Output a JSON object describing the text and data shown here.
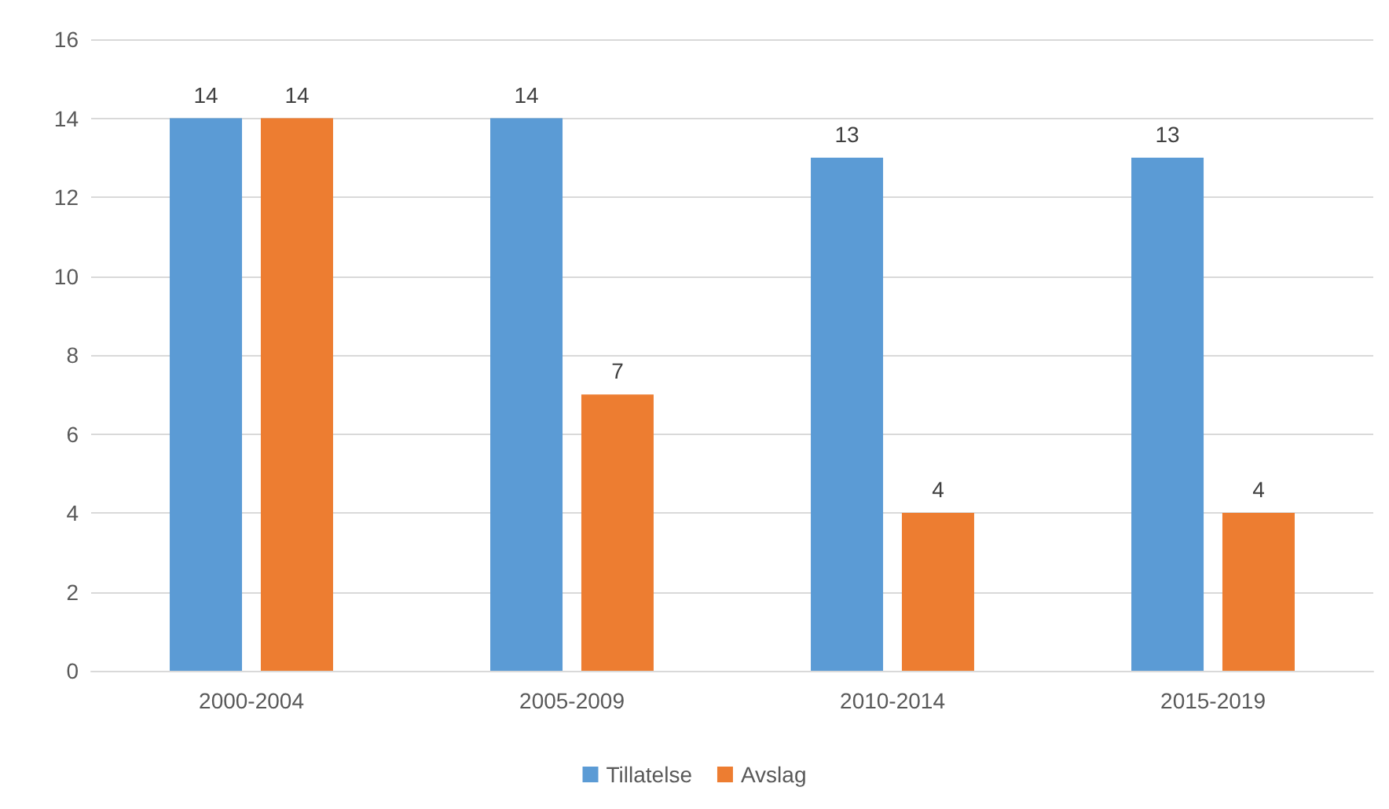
{
  "chart_data": {
    "type": "bar",
    "categories": [
      "2000-2004",
      "2005-2009",
      "2010-2014",
      "2015-2019"
    ],
    "series": [
      {
        "name": "Tillatelse",
        "color": "#5b9bd5",
        "values": [
          14,
          14,
          13,
          13
        ]
      },
      {
        "name": "Avslag",
        "color": "#ed7d31",
        "values": [
          14,
          7,
          4,
          4
        ]
      }
    ],
    "ylim": [
      0,
      16
    ],
    "yticks": [
      0,
      2,
      4,
      6,
      8,
      10,
      12,
      14,
      16
    ],
    "grid": "y",
    "legend": "bottom",
    "data_labels": true
  }
}
